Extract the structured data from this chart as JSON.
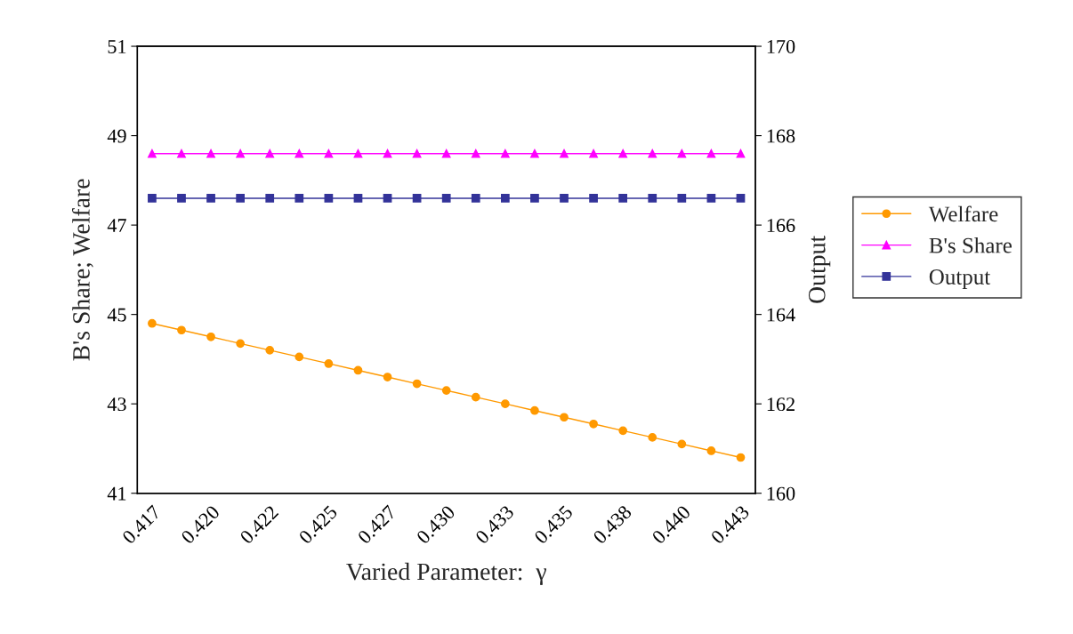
{
  "chart_data": {
    "type": "line",
    "xlabel": "Varied Parameter:  γ",
    "ylabel": "B's Share; Welfare",
    "y2label": "Output",
    "categories": [
      "0.417",
      null,
      "0.420",
      null,
      "0.422",
      null,
      "0.425",
      null,
      "0.427",
      null,
      "0.430",
      null,
      "0.433",
      null,
      "0.435",
      null,
      "0.438",
      null,
      "0.440",
      null,
      "0.443"
    ],
    "series": [
      {
        "name": "Welfare",
        "color": "#ff9900",
        "marker": "circle",
        "values": [
          44.8,
          44.65,
          44.5,
          44.35,
          44.2,
          44.05,
          43.9,
          43.75,
          43.6,
          43.45,
          43.3,
          43.15,
          43.0,
          42.85,
          42.7,
          42.55,
          42.4,
          42.25,
          42.1,
          41.95,
          41.8
        ]
      },
      {
        "name": "B's Share",
        "color": "#ff00ff",
        "marker": "triangle",
        "values": [
          48.6,
          48.6,
          48.6,
          48.6,
          48.6,
          48.6,
          48.6,
          48.6,
          48.6,
          48.6,
          48.6,
          48.6,
          48.6,
          48.6,
          48.6,
          48.6,
          48.6,
          48.6,
          48.6,
          48.6,
          48.6
        ]
      },
      {
        "name": "Output",
        "color": "#333399",
        "marker": "square",
        "axis": "y2",
        "values": [
          166.6,
          166.6,
          166.6,
          166.6,
          166.6,
          166.6,
          166.6,
          166.6,
          166.6,
          166.6,
          166.6,
          166.6,
          166.6,
          166.6,
          166.6,
          166.6,
          166.6,
          166.6,
          166.6,
          166.6,
          166.6
        ]
      }
    ],
    "ylim": [
      41,
      51
    ],
    "yticks": [
      41,
      43,
      45,
      47,
      49,
      51
    ],
    "y2lim": [
      160,
      170
    ],
    "y2ticks": [
      160,
      162,
      164,
      166,
      168,
      170
    ],
    "grid": false,
    "legend": "right"
  }
}
